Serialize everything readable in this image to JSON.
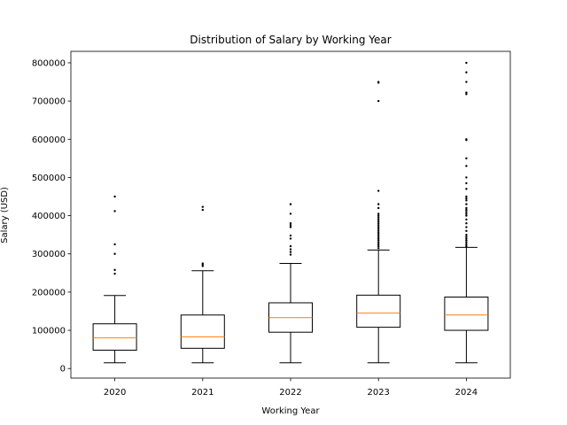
{
  "chart_data": {
    "type": "box",
    "title": "Distribution of Salary by Working Year",
    "xlabel": "Working Year",
    "ylabel": "Salary (USD)",
    "categories": [
      "2020",
      "2021",
      "2022",
      "2023",
      "2024"
    ],
    "ylim": [
      -25000,
      830000
    ],
    "yticks": [
      0,
      100000,
      200000,
      300000,
      400000,
      500000,
      600000,
      700000,
      800000
    ],
    "ytick_labels": [
      "0",
      "100000",
      "200000",
      "300000",
      "400000",
      "500000",
      "600000",
      "700000",
      "800000"
    ],
    "grid": false,
    "boxes": [
      {
        "category": "2020",
        "whisker_low": 15000,
        "q1": 48000,
        "median": 80000,
        "q3": 117000,
        "whisker_high": 191000,
        "outliers": [
          248000,
          258000,
          300000,
          325000,
          412000,
          450000
        ]
      },
      {
        "category": "2021",
        "whisker_low": 15000,
        "q1": 53000,
        "median": 83000,
        "q3": 140000,
        "whisker_high": 256000,
        "outliers": [
          268000,
          272000,
          275000,
          415000,
          423000
        ]
      },
      {
        "category": "2022",
        "whisker_low": 15000,
        "q1": 95000,
        "median": 133000,
        "q3": 172000,
        "whisker_high": 275000,
        "outliers": [
          298000,
          305000,
          312000,
          320000,
          340000,
          348000,
          370000,
          375000,
          380000,
          405000,
          430000
        ]
      },
      {
        "category": "2023",
        "whisker_low": 15000,
        "q1": 108000,
        "median": 145000,
        "q3": 192000,
        "whisker_high": 310000,
        "outliers": [
          315000,
          320000,
          325000,
          330000,
          335000,
          340000,
          345000,
          350000,
          355000,
          360000,
          365000,
          370000,
          375000,
          380000,
          385000,
          390000,
          395000,
          400000,
          405000,
          420000,
          430000,
          465000,
          700000,
          748000,
          750000
        ]
      },
      {
        "category": "2024",
        "whisker_low": 15000,
        "q1": 100000,
        "median": 140000,
        "q3": 187000,
        "whisker_high": 317000,
        "outliers": [
          320000,
          325000,
          330000,
          335000,
          340000,
          345000,
          350000,
          360000,
          370000,
          380000,
          390000,
          400000,
          405000,
          410000,
          415000,
          420000,
          430000,
          440000,
          445000,
          450000,
          470000,
          485000,
          500000,
          530000,
          550000,
          598000,
          600000,
          718000,
          722000,
          750000,
          775000,
          800000
        ]
      }
    ],
    "colors": {
      "box": "#000000",
      "median": "#ff7f0e",
      "outlier": "#000000"
    }
  }
}
